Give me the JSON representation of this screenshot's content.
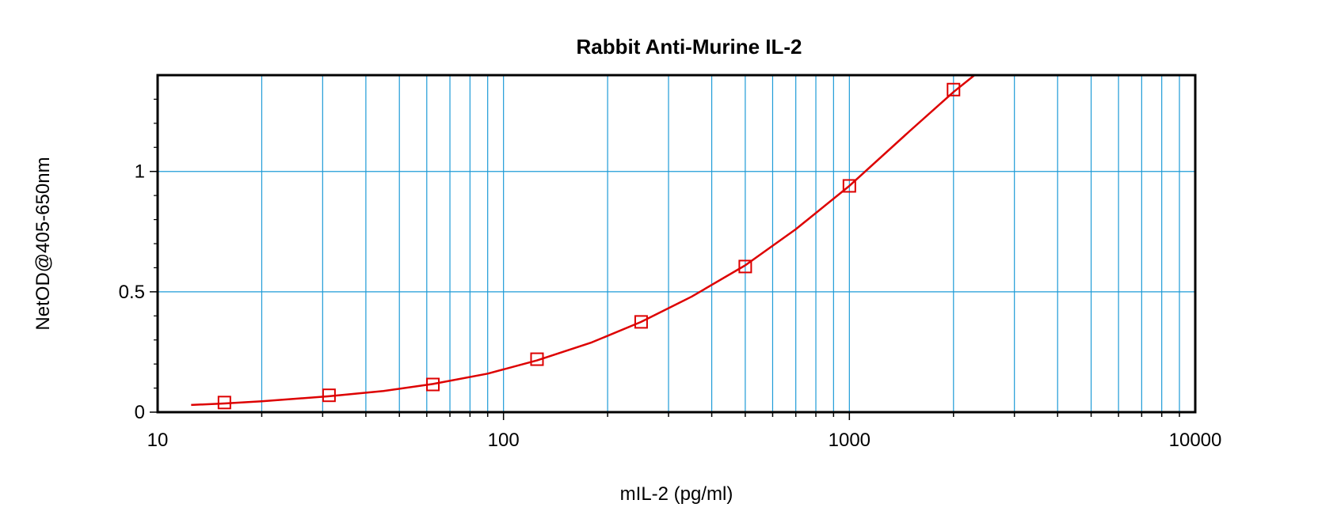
{
  "chart_data": {
    "type": "scatter",
    "title": "Rabbit Anti-Murine IL-2",
    "xlabel": "mIL-2 (pg/ml)",
    "ylabel": "NetOD@405-650nm",
    "x_scale": "log",
    "xlim": [
      10,
      10000
    ],
    "ylim": [
      0,
      1.4
    ],
    "grid": true,
    "x_ticks": [
      "10",
      "100",
      "1000",
      "10000"
    ],
    "y_ticks": [
      "0",
      "0.5",
      "1"
    ],
    "series": [
      {
        "points": [
          {
            "x": 15.6,
            "y": 0.04
          },
          {
            "x": 31.3,
            "y": 0.07
          },
          {
            "x": 62.5,
            "y": 0.115
          },
          {
            "x": 125,
            "y": 0.22
          },
          {
            "x": 250,
            "y": 0.375
          },
          {
            "x": 500,
            "y": 0.605
          },
          {
            "x": 1000,
            "y": 0.94
          },
          {
            "x": 2000,
            "y": 1.34
          }
        ],
        "fit_curve": [
          {
            "x": 12.5,
            "y": 0.03
          },
          {
            "x": 15.6,
            "y": 0.036
          },
          {
            "x": 20,
            "y": 0.045
          },
          {
            "x": 31.3,
            "y": 0.066
          },
          {
            "x": 45,
            "y": 0.088
          },
          {
            "x": 62.5,
            "y": 0.117
          },
          {
            "x": 90,
            "y": 0.16
          },
          {
            "x": 125,
            "y": 0.215
          },
          {
            "x": 180,
            "y": 0.29
          },
          {
            "x": 250,
            "y": 0.375
          },
          {
            "x": 350,
            "y": 0.48
          },
          {
            "x": 500,
            "y": 0.61
          },
          {
            "x": 700,
            "y": 0.76
          },
          {
            "x": 1000,
            "y": 0.94
          },
          {
            "x": 1500,
            "y": 1.17
          },
          {
            "x": 2000,
            "y": 1.33
          },
          {
            "x": 2300,
            "y": 1.4
          }
        ],
        "marker": "open-square",
        "color": "#dd0000"
      }
    ],
    "grid_color": "#1e9bd7",
    "frame_color": "#000000"
  }
}
